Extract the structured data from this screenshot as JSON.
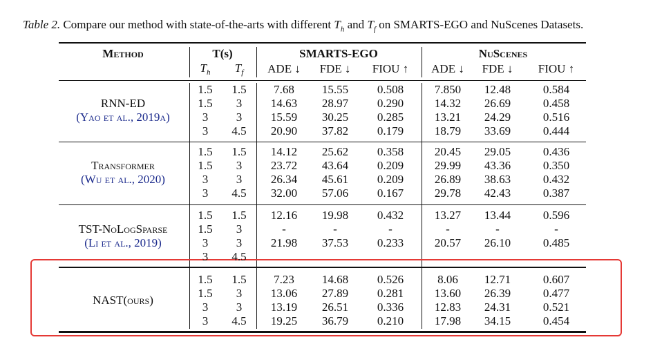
{
  "caption": {
    "label": "Table 2.",
    "before": "Compare our method with state-of-the-arts with different",
    "th": {
      "base": "T",
      "sub": "h"
    },
    "mid": "and",
    "tf": {
      "base": "T",
      "sub": "f"
    },
    "after": "on SMARTS-EGO and NuScenes Datasets."
  },
  "header": {
    "method": "Method",
    "time": "T(s)",
    "smarts": "SMARTS-EGO",
    "nuscenes": "NuScenes",
    "time_cols": [
      {
        "base": "T",
        "sub": "h"
      },
      {
        "base": "T",
        "sub": "f"
      }
    ],
    "metrics_smarts": [
      "ADE ↓",
      "FDE ↓",
      "FIOU ↑"
    ],
    "metrics_nuscenes": [
      "ADE ↓",
      "FDE ↓",
      "FIOU ↑"
    ]
  },
  "groups": [
    {
      "method": "RNN-ED",
      "citation": "(Yao et al., 2019a)",
      "rows": [
        [
          "1.5",
          "1.5",
          "7.68",
          "15.55",
          "0.508",
          "7.850",
          "12.48",
          "0.584"
        ],
        [
          "1.5",
          "3",
          "14.63",
          "28.97",
          "0.290",
          "14.32",
          "26.69",
          "0.458"
        ],
        [
          "3",
          "3",
          "15.59",
          "30.25",
          "0.285",
          "13.21",
          "24.29",
          "0.516"
        ],
        [
          "3",
          "4.5",
          "20.90",
          "37.82",
          "0.179",
          "18.79",
          "33.69",
          "0.444"
        ]
      ]
    },
    {
      "method": "Transformer",
      "citation": "(Wu et al., 2020)",
      "rows": [
        [
          "1.5",
          "1.5",
          "14.12",
          "25.62",
          "0.358",
          "20.45",
          "29.05",
          "0.436"
        ],
        [
          "1.5",
          "3",
          "23.72",
          "43.64",
          "0.209",
          "29.99",
          "43.36",
          "0.350"
        ],
        [
          "3",
          "3",
          "26.34",
          "45.61",
          "0.209",
          "26.89",
          "38.63",
          "0.432"
        ],
        [
          "3",
          "4.5",
          "32.00",
          "57.06",
          "0.167",
          "29.78",
          "42.43",
          "0.387"
        ]
      ]
    },
    {
      "method": "TST-NoLogSparse",
      "citation": "(Li et al., 2019)",
      "rows": [
        [
          "1.5",
          "1.5",
          "12.16",
          "19.98",
          "0.432",
          "13.27",
          "13.44",
          "0.596"
        ],
        [
          "1.5",
          "3",
          "-",
          "-",
          "-",
          "-",
          "-",
          "-"
        ],
        [
          "3",
          "3",
          "21.98",
          "37.53",
          "0.233",
          "20.57",
          "26.10",
          "0.485"
        ],
        [
          "3",
          "4.5"
        ]
      ]
    },
    {
      "method": "NAST(ours)",
      "rows": [
        [
          "1.5",
          "1.5",
          "7.23",
          "14.68",
          "0.526",
          "8.06",
          "12.71",
          "0.607"
        ],
        [
          "1.5",
          "3",
          "13.06",
          "27.89",
          "0.281",
          "13.60",
          "26.39",
          "0.477"
        ],
        [
          "3",
          "3",
          "13.19",
          "26.51",
          "0.336",
          "12.83",
          "24.31",
          "0.521"
        ],
        [
          "3",
          "4.5",
          "19.25",
          "36.79",
          "0.210",
          "17.98",
          "34.15",
          "0.454"
        ]
      ]
    }
  ]
}
